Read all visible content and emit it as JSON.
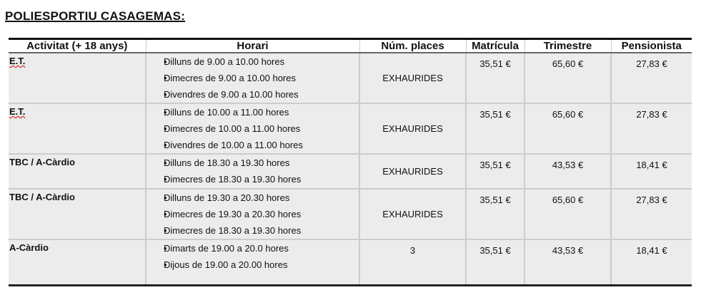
{
  "title": "POLIESPORTIU CASAGEMAS:",
  "headers": [
    "Activitat (+ 18 anys)",
    "Horari",
    "Núm. places",
    "Matrícula",
    "Trimestre",
    "Pensionista"
  ],
  "rows": [
    {
      "activity": "E.T.",
      "schedule": [
        "Dilluns de 9.00 a 10.00 hores",
        "Dimecres de 9.00 a 10.00 hores",
        "Divendres de 9.00 a 10.00 hores"
      ],
      "places": "EXHAURIDES",
      "matricula": "35,51 €",
      "trimestre": "65,60 €",
      "pensionista": "27,83 €"
    },
    {
      "activity": "E.T.",
      "schedule": [
        "Dilluns de 10.00 a 11.00 hores",
        "Dimecres de 10.00 a 11.00 hores",
        "Divendres de 10.00 a 11.00 hores"
      ],
      "places": "EXHAURIDES",
      "matricula": "35,51 €",
      "trimestre": "65,60 €",
      "pensionista": "27,83 €"
    },
    {
      "activity": "TBC / A-Càrdio",
      "schedule": [
        "Dilluns de 18.30 a 19.30 hores",
        "Dimecres de 18.30 a 19.30 hores"
      ],
      "places": "EXHAURIDES",
      "matricula": "35,51 €",
      "trimestre": "43,53 €",
      "pensionista": "18,41 €"
    },
    {
      "activity": "TBC / A-Càrdio",
      "schedule": [
        "Dilluns de 19.30 a 20.30 hores",
        "Dimecres de 19.30 a 20.30 hores",
        "Dimecres de 18.30 a 19.30 hores"
      ],
      "places": "EXHAURIDES",
      "matricula": "35,51 €",
      "trimestre": "65,60 €",
      "pensionista": "27,83 €"
    },
    {
      "activity": "A-Càrdio",
      "schedule": [
        "Dimarts de 19.00 a 20.0 hores",
        "Dijous de 19.00 a 20.00 hores"
      ],
      "places": "3",
      "matricula": "35,51 €",
      "trimestre": "43,53 €",
      "pensionista": "18,41 €"
    }
  ]
}
